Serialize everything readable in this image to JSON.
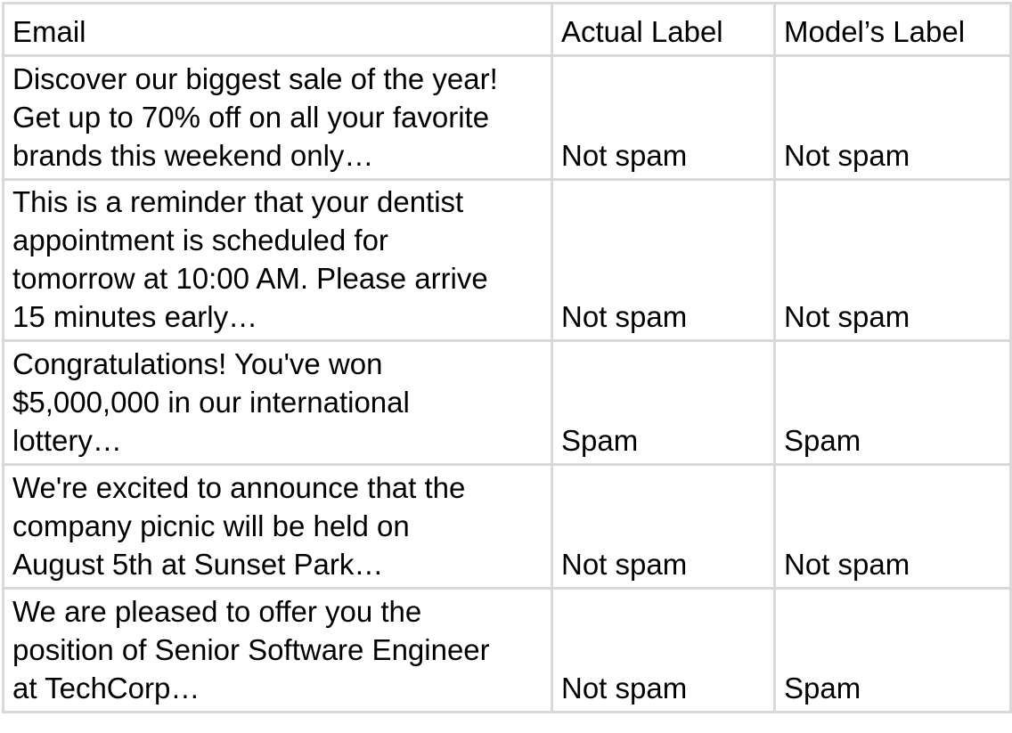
{
  "table": {
    "headers": {
      "email": "Email",
      "actual": "Actual Label",
      "model": "Model’s Label"
    },
    "rows": [
      {
        "email_lines": [
          "Discover our biggest sale of the year!",
          "Get up to 70% off on all your favorite",
          "brands this weekend only…"
        ],
        "actual": "Not spam",
        "model": "Not spam"
      },
      {
        "email_lines": [
          "This is a reminder that your dentist",
          "appointment is scheduled for",
          "tomorrow at 10:00 AM. Please arrive",
          "15 minutes early…"
        ],
        "actual": "Not spam",
        "model": "Not spam"
      },
      {
        "email_lines": [
          "Congratulations! You've won",
          "$5,000,000 in our international",
          "lottery…"
        ],
        "actual": "Spam",
        "model": "Spam"
      },
      {
        "email_lines": [
          "We're excited to announce that the",
          "company picnic will be held on",
          "August 5th at Sunset Park…"
        ],
        "actual": "Not spam",
        "model": "Not spam"
      },
      {
        "email_lines": [
          "We are pleased to offer you the",
          "position of Senior Software Engineer",
          "at TechCorp…"
        ],
        "actual": "Not spam",
        "model": "Spam"
      }
    ]
  }
}
